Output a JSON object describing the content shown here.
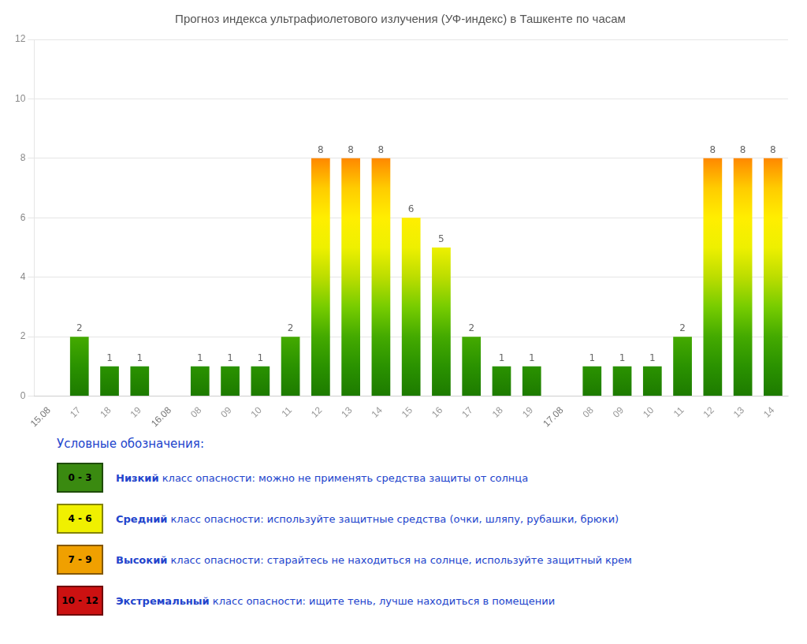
{
  "chart_data": {
    "type": "bar",
    "title": "Прогноз индекса ультрафиолетового излучения (УФ-индекс) в Ташкенте по часам",
    "categories": [
      "15.08",
      "17",
      "18",
      "19",
      "16.08",
      "08",
      "09",
      "10",
      "11",
      "12",
      "13",
      "14",
      "15",
      "16",
      "17",
      "18",
      "19",
      "17.08",
      "08",
      "09",
      "10",
      "11",
      "12",
      "13",
      "14"
    ],
    "values": [
      null,
      2,
      1,
      1,
      null,
      1,
      1,
      1,
      2,
      8,
      8,
      8,
      6,
      5,
      2,
      1,
      1,
      null,
      1,
      1,
      1,
      2,
      8,
      8,
      8
    ],
    "color_stops": [
      [
        0.0,
        "#1d7a00"
      ],
      [
        0.083,
        "#2a9200"
      ],
      [
        0.167,
        "#44aa00"
      ],
      [
        0.25,
        "#77cc00"
      ],
      [
        0.333,
        "#bbdd00"
      ],
      [
        0.417,
        "#eef000"
      ],
      [
        0.5,
        "#ffee00"
      ],
      [
        0.583,
        "#ffcc00"
      ],
      [
        0.667,
        "#ff8800"
      ],
      [
        0.75,
        "#ff4400"
      ],
      [
        0.833,
        "#ee1100"
      ],
      [
        1.0,
        "#cc0000"
      ]
    ],
    "ylim": [
      0,
      12
    ],
    "yticks": [
      0,
      2,
      4,
      6,
      8,
      10,
      12
    ],
    "grid": true,
    "data_labels": true,
    "legend_title": "Условные обозначения:",
    "legend_items": [
      {
        "label": "0 - 3",
        "color": "#3a8a10",
        "bold": "Низкий",
        "text": " класс опасности: можно не применять средства защиты от солнца"
      },
      {
        "label": "4 - 6",
        "color": "#f0f000",
        "bold": "Средний",
        "text": " класс опасности: используйте защитные средства (очки, шляпу, рубашки, брюки)"
      },
      {
        "label": "7 - 9",
        "color": "#f0a000",
        "bold": "Высокий",
        "text": " класс опасности: старайтесь не находиться на солнце, используйте защитный крем"
      },
      {
        "label": "10 - 12",
        "color": "#cc1111",
        "bold": "Экстремальный",
        "text": " класс опасности: ищите тень, лучше находиться в помещении"
      }
    ]
  }
}
